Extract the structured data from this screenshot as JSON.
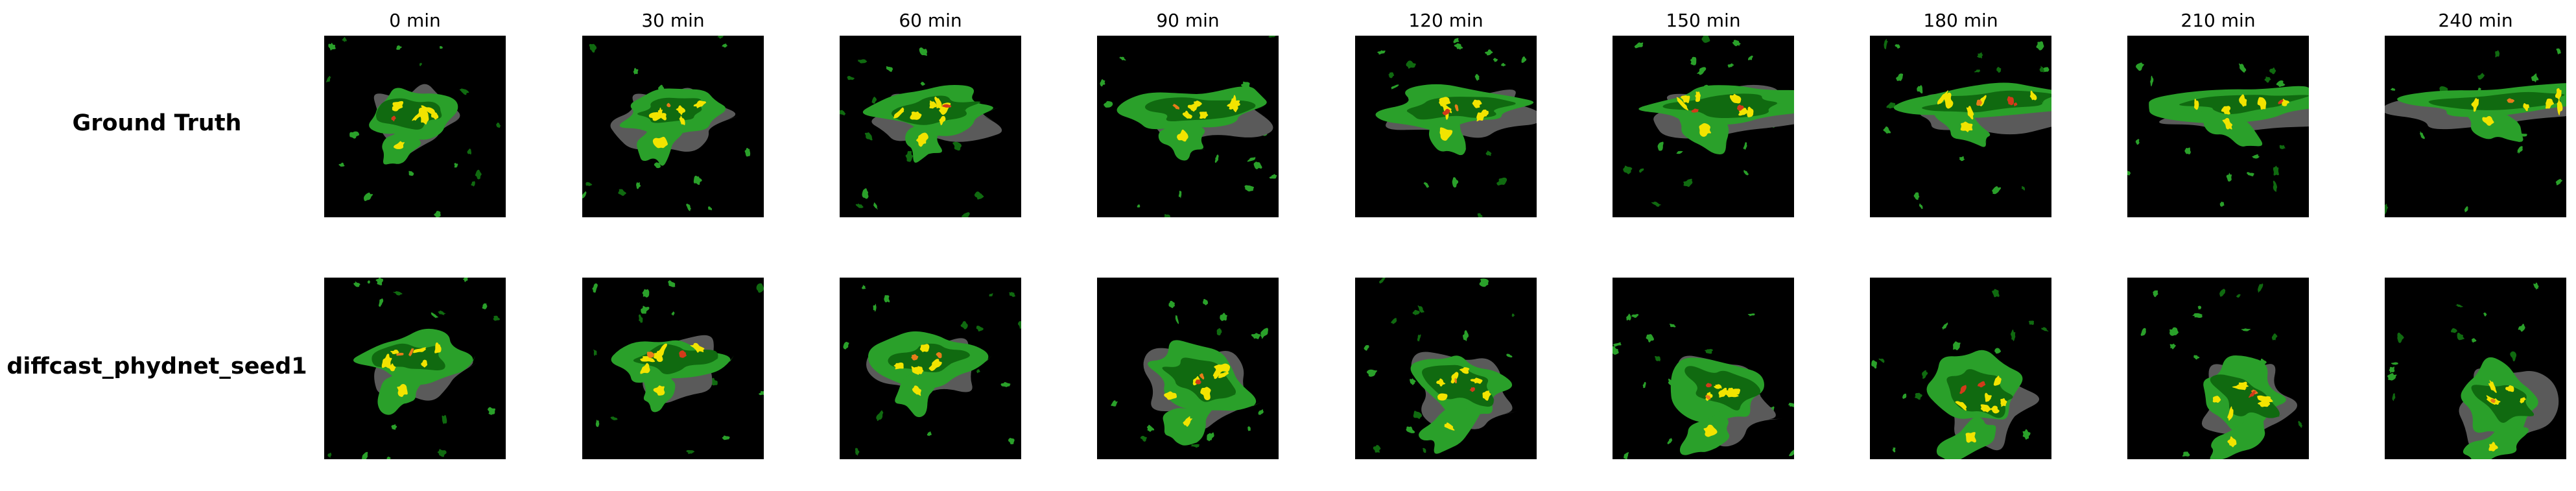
{
  "columns": [
    "0 min",
    "30 min",
    "60 min",
    "90 min",
    "120 min",
    "150 min",
    "180 min",
    "210 min",
    "240 min"
  ],
  "rows": [
    {
      "label": "Ground Truth"
    },
    {
      "label": "diffcast_phydnet_seed1"
    }
  ],
  "colors": {
    "background": "#000000",
    "light_green": "#2aa02a",
    "dark_green": "#106a10",
    "yellow": "#f2e400",
    "orange": "#e87c1a",
    "red": "#d23a1a",
    "gray": "#5a5a5a"
  }
}
